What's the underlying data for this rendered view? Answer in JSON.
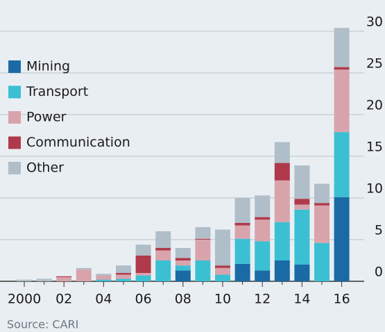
{
  "chart_data": {
    "type": "stacked_bar",
    "source": "Source: CARI",
    "categories": [
      "2000",
      null,
      "02",
      null,
      "04",
      null,
      "06",
      null,
      "08",
      null,
      "10",
      null,
      "12",
      null,
      "14",
      null,
      "16"
    ],
    "series": [
      {
        "name": "Mining",
        "color": "#1a6aa6",
        "values": [
          0,
          0,
          0,
          0,
          0,
          0,
          0,
          0,
          1.3,
          0,
          0,
          2.1,
          1.3,
          2.5,
          2.0,
          0,
          10.1
        ]
      },
      {
        "name": "Transport",
        "color": "#3bbfd3",
        "values": [
          0,
          0,
          0,
          0,
          0.2,
          0.3,
          0.7,
          2.5,
          0.6,
          2.5,
          0.8,
          3.0,
          3.5,
          4.6,
          6.6,
          4.6,
          7.8
        ]
      },
      {
        "name": "Power",
        "color": "#d9a3ab",
        "values": [
          0,
          0,
          0.5,
          1.4,
          0.5,
          0.5,
          0.3,
          1.2,
          0.6,
          2.5,
          0.8,
          1.6,
          2.6,
          5.0,
          0.6,
          4.5,
          7.5
        ]
      },
      {
        "name": "Communication",
        "color": "#b03a4b",
        "values": [
          0,
          0,
          0.1,
          0,
          0,
          0.2,
          2.1,
          0.3,
          0.3,
          0.1,
          0.3,
          0.3,
          0.3,
          2.1,
          0.7,
          0.3,
          0.3
        ]
      },
      {
        "name": "Other",
        "color": "#afbec8",
        "values": [
          0.2,
          0.3,
          0,
          0.2,
          0.2,
          0.9,
          1.3,
          2.0,
          1.2,
          1.4,
          4.3,
          3.0,
          2.6,
          2.5,
          4.0,
          2.3,
          4.7
        ]
      }
    ],
    "ylim": [
      0,
      30
    ],
    "yticks": [
      0,
      5,
      10,
      15,
      20,
      25,
      30
    ],
    "grid": true,
    "legend": "top-left"
  }
}
